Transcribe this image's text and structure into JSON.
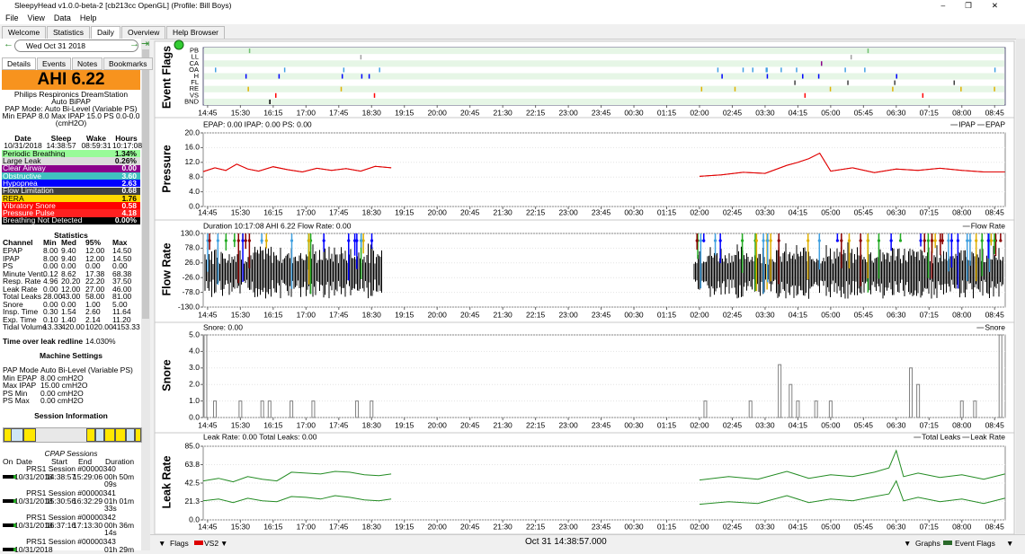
{
  "window": {
    "title": "SleepyHead v1.0.0-beta-2 [cb213cc OpenGL] (Profile: Bill Boys)",
    "menu": [
      "File",
      "View",
      "Data",
      "Help"
    ],
    "tabs": [
      "Welcome",
      "Statistics",
      "Daily",
      "Overview",
      "Help Browser"
    ],
    "active_tab": 2
  },
  "sidebar": {
    "date": "Wed Oct 31 2018",
    "tabs": [
      "Details",
      "Events",
      "Notes",
      "Bookmarks"
    ],
    "active_tab": 0,
    "ahi": "AHI 6.22",
    "machine": [
      "Philips Respironics DreamStation",
      "Auto BiPAP",
      "PAP Mode: Auto Bi-Level (Variable PS)",
      "Min EPAP 8.0 Max IPAP 15.0 PS 0.0-0.0",
      "(cmH2O)"
    ],
    "summary": {
      "headers": [
        "Date",
        "Sleep",
        "Wake",
        "Hours"
      ],
      "row": [
        "10/31/2018",
        "14:38:57",
        "08:59:31",
        "10:17:08"
      ]
    },
    "indices": [
      {
        "label": "Periodic Breathing",
        "value": "1.34%",
        "color": "#98fb98",
        "text_color": "#000000"
      },
      {
        "label": "Large Leak",
        "value": "0.26%",
        "color": "#dcdcdc",
        "text_color": "#000000"
      },
      {
        "label": "Clear Airway",
        "value": "0.00",
        "color": "#8b008b",
        "text_color": "#ffffff"
      },
      {
        "label": "Obstructive",
        "value": "3.60",
        "color": "#40c0c0",
        "text_color": "#ffffff"
      },
      {
        "label": "Hypopnea",
        "value": "2.63",
        "color": "#0000ff",
        "text_color": "#ffffff"
      },
      {
        "label": "Flow Limitation",
        "value": "0.68",
        "color": "#404040",
        "text_color": "#ffffff"
      },
      {
        "label": "RERA",
        "value": "1.76",
        "color": "#ffd700",
        "text_color": "#000000"
      },
      {
        "label": "Vibratory Snore",
        "value": "0.58",
        "color": "#ff0000",
        "text_color": "#ffffff"
      },
      {
        "label": "Pressure Pulse",
        "value": "4.18",
        "color": "#ff2020",
        "text_color": "#ffffff"
      },
      {
        "label": "Breathing Not Detected",
        "value": "0.00%",
        "color": "#000000",
        "text_color": "#ffffff"
      }
    ],
    "statistics": {
      "title": "Statistics",
      "headers": [
        "Channel",
        "Min",
        "Med",
        "95%",
        "Max"
      ],
      "rows": [
        [
          "EPAP",
          "8.00",
          "9.40",
          "12.00",
          "14.50"
        ],
        [
          "IPAP",
          "8.00",
          "9.40",
          "12.00",
          "14.50"
        ],
        [
          "PS",
          "0.00",
          "0.00",
          "0.00",
          "0.00"
        ],
        [
          "Minute Vent.",
          "0.12",
          "8.62",
          "17.38",
          "68.38"
        ],
        [
          "Resp. Rate",
          "4.96",
          "20.20",
          "22.20",
          "37.50"
        ],
        [
          "Leak Rate",
          "0.00",
          "12.00",
          "27.00",
          "46.00"
        ],
        [
          "Total Leaks",
          "28.00",
          "43.00",
          "58.00",
          "81.00"
        ],
        [
          "Snore",
          "0.00",
          "0.00",
          "1.00",
          "5.00"
        ],
        [
          "Insp. Time",
          "0.30",
          "1.54",
          "2.60",
          "11.64"
        ],
        [
          "Exp. Time",
          "0.10",
          "1.40",
          "2.14",
          "11.20"
        ],
        [
          "Tidal Volume",
          "13.33",
          "420.00",
          "1020.00",
          "4153.33"
        ]
      ]
    },
    "leak_redline": {
      "label": "Time over leak redline",
      "value": "14.030%"
    },
    "settings": {
      "title": "Machine Settings",
      "rows": [
        [
          "PAP Mode",
          "Auto Bi-Level (Variable PS)"
        ],
        [
          "Min EPAP",
          "8.00 cmH2O"
        ],
        [
          "Max IPAP",
          "15.00 cmH2O"
        ],
        [
          "PS Min",
          "0.00 cmH2O"
        ],
        [
          "PS Max",
          "0.00 cmH2O"
        ]
      ]
    },
    "session_info": "Session Information",
    "cpap": {
      "title": "CPAP Sessions",
      "headers": [
        "On",
        "Date",
        "Start",
        "End",
        "Duration"
      ],
      "sessions": [
        {
          "machine": "PRS1 Session #00000340",
          "date": "10/31/2018",
          "start": "14:38:57",
          "end": "15:29:06",
          "duration": "00h 50m 09s"
        },
        {
          "machine": "PRS1 Session #00000341",
          "date": "10/31/2018",
          "start": "15:30:56",
          "end": "16:32:29",
          "duration": "01h 01m 33s"
        },
        {
          "machine": "PRS1 Session #00000342",
          "date": "10/31/2018",
          "start": "16:37:16",
          "end": "17:13:30",
          "duration": "00h 36m 14s"
        },
        {
          "machine": "PRS1 Session #00000343",
          "date": "10/31/2018",
          "duration": "01h 29m"
        }
      ]
    }
  },
  "bottom": {
    "flags": "Flags",
    "vs": "VS2",
    "time": "Oct 31 14:38:57.000",
    "graphs": "Graphs",
    "event_flags": "Event Flags"
  },
  "event_flags": {
    "title": "Event Flags",
    "channels": [
      "PB",
      "LL",
      "CA",
      "OA",
      "H",
      "FL",
      "RE",
      "VS",
      "BND"
    ]
  },
  "time_axis": {
    "xlim": [
      38.95,
      1139.52
    ],
    "xticks": [
      {
        "value": 45,
        "label": "14:45"
      },
      {
        "value": 90,
        "label": "15:30"
      },
      {
        "value": 135,
        "label": "16:15"
      },
      {
        "value": 180,
        "label": "17:00"
      },
      {
        "value": 225,
        "label": "17:45"
      },
      {
        "value": 270,
        "label": "18:30"
      },
      {
        "value": 315,
        "label": "19:15"
      },
      {
        "value": 360,
        "label": "20:00"
      },
      {
        "value": 405,
        "label": "20:45"
      },
      {
        "value": 450,
        "label": "21:30"
      },
      {
        "value": 495,
        "label": "22:15"
      },
      {
        "value": 540,
        "label": "23:00"
      },
      {
        "value": 585,
        "label": "23:45"
      },
      {
        "value": 630,
        "label": "00:30"
      },
      {
        "value": 675,
        "label": "01:15"
      },
      {
        "value": 720,
        "label": "02:00"
      },
      {
        "value": 765,
        "label": "02:45"
      },
      {
        "value": 810,
        "label": "03:30"
      },
      {
        "value": 855,
        "label": "04:15"
      },
      {
        "value": 900,
        "label": "05:00"
      },
      {
        "value": 945,
        "label": "05:45"
      },
      {
        "value": 990,
        "label": "06:30"
      },
      {
        "value": 1035,
        "label": "07:15"
      },
      {
        "value": 1080,
        "label": "08:00"
      },
      {
        "value": 1125,
        "label": "08:45"
      }
    ]
  },
  "chart_data": [
    {
      "type": "line",
      "title": "Pressure",
      "header": "EPAP: 0.00 IPAP: 0.00 PS: 0.00",
      "ylim": [
        0,
        20
      ],
      "yticks": [
        {
          "value": 0,
          "label": "0.0"
        },
        {
          "value": 4,
          "label": "4.0"
        },
        {
          "value": 8,
          "label": "8.0"
        },
        {
          "value": 12,
          "label": "12.0"
        },
        {
          "value": 16,
          "label": "16.0"
        },
        {
          "value": 20,
          "label": "20.0"
        }
      ],
      "x": [
        39,
        55,
        70,
        85,
        100,
        115,
        135,
        155,
        175,
        195,
        215,
        235,
        255,
        275,
        297,
        500,
        720,
        750,
        780,
        810,
        840,
        855,
        870,
        885,
        900,
        930,
        960,
        990,
        1020,
        1050,
        1080,
        1110,
        1139
      ],
      "series": [
        {
          "name": "IPAP",
          "color": "#e00000",
          "values": [
            9.5,
            10.5,
            9.8,
            11.5,
            10.2,
            9.6,
            10.8,
            10.0,
            9.4,
            10.4,
            9.8,
            10.3,
            9.6,
            10.9,
            10.5,
            null,
            8.2,
            8.6,
            9.3,
            9.0,
            11.2,
            12.0,
            13.0,
            14.5,
            9.6,
            10.5,
            9.2,
            10.2,
            9.8,
            10.4,
            9.8,
            9.4,
            9.4
          ]
        },
        {
          "name": "EPAP",
          "color": "#e00000",
          "values": [
            9.5,
            10.5,
            9.8,
            11.5,
            10.2,
            9.6,
            10.8,
            10.0,
            9.4,
            10.4,
            9.8,
            10.3,
            9.6,
            10.9,
            10.5,
            null,
            8.2,
            8.6,
            9.3,
            9.0,
            11.2,
            12.0,
            13.0,
            14.5,
            9.6,
            10.5,
            9.2,
            10.2,
            9.8,
            10.4,
            9.8,
            9.4,
            9.4
          ]
        }
      ]
    },
    {
      "type": "line",
      "title": "Flow Rate",
      "header": "Duration 10:17:08 AHI 6.22 Flow Rate: 0.00",
      "ylim": [
        -130,
        130
      ],
      "yticks": [
        {
          "value": -130,
          "label": "-130.0"
        },
        {
          "value": -78,
          "label": "-78.0"
        },
        {
          "value": -26,
          "label": "-26.0"
        },
        {
          "value": 26,
          "label": "26.0"
        },
        {
          "value": 78,
          "label": "78.0"
        },
        {
          "value": 130,
          "label": "130.0"
        }
      ],
      "legend": [
        "Flow Rate"
      ]
    },
    {
      "type": "bar",
      "title": "Snore",
      "header": "Snore: 0.00",
      "ylim": [
        0,
        5
      ],
      "yticks": [
        {
          "value": 0,
          "label": "0.0"
        },
        {
          "value": 1,
          "label": "1.0"
        },
        {
          "value": 2,
          "label": "2.0"
        },
        {
          "value": 3,
          "label": "3.0"
        },
        {
          "value": 4,
          "label": "4.0"
        },
        {
          "value": 5,
          "label": "5.0"
        }
      ],
      "x": [
        42,
        55,
        90,
        120,
        130,
        160,
        190,
        250,
        270,
        728,
        790,
        830,
        845,
        855,
        880,
        900,
        1010,
        1020,
        1080,
        1098,
        1133
      ],
      "series": [
        {
          "name": "Snore",
          "color": "#808080",
          "values": [
            5,
            1,
            1,
            1,
            1,
            1,
            1,
            1,
            1,
            1,
            1,
            3.2,
            2,
            1,
            1,
            1,
            3,
            2,
            1,
            1,
            5
          ]
        }
      ]
    },
    {
      "type": "line",
      "title": "Leak Rate",
      "header": "Leak Rate: 0.00 Total Leaks: 0.00",
      "ylim": [
        0,
        85
      ],
      "yticks": [
        {
          "value": 0,
          "label": "0.0"
        },
        {
          "value": 21.25,
          "label": "21.3"
        },
        {
          "value": 42.5,
          "label": "42.5"
        },
        {
          "value": 63.75,
          "label": "63.8"
        },
        {
          "value": 85,
          "label": "85.0"
        }
      ],
      "x": [
        39,
        60,
        80,
        100,
        120,
        140,
        160,
        180,
        200,
        220,
        240,
        260,
        280,
        297,
        500,
        720,
        760,
        800,
        840,
        870,
        900,
        930,
        960,
        980,
        990,
        1000,
        1020,
        1050,
        1080,
        1110,
        1139
      ],
      "series": [
        {
          "name": "Total Leaks",
          "color": "#228b22",
          "values": [
            45,
            48,
            44,
            50,
            47,
            45,
            55,
            54,
            53,
            56,
            55,
            52,
            51,
            53,
            null,
            46,
            50,
            47,
            56,
            48,
            52,
            50,
            55,
            60,
            80,
            50,
            54,
            49,
            52,
            47,
            53
          ]
        },
        {
          "name": "Leak Rate",
          "color": "#228b22",
          "values": [
            22,
            24,
            20,
            25,
            22,
            21,
            27,
            26,
            24,
            28,
            26,
            23,
            22,
            24,
            null,
            18,
            21,
            19,
            28,
            20,
            24,
            22,
            27,
            30,
            45,
            22,
            26,
            21,
            24,
            19,
            25
          ]
        }
      ]
    }
  ]
}
